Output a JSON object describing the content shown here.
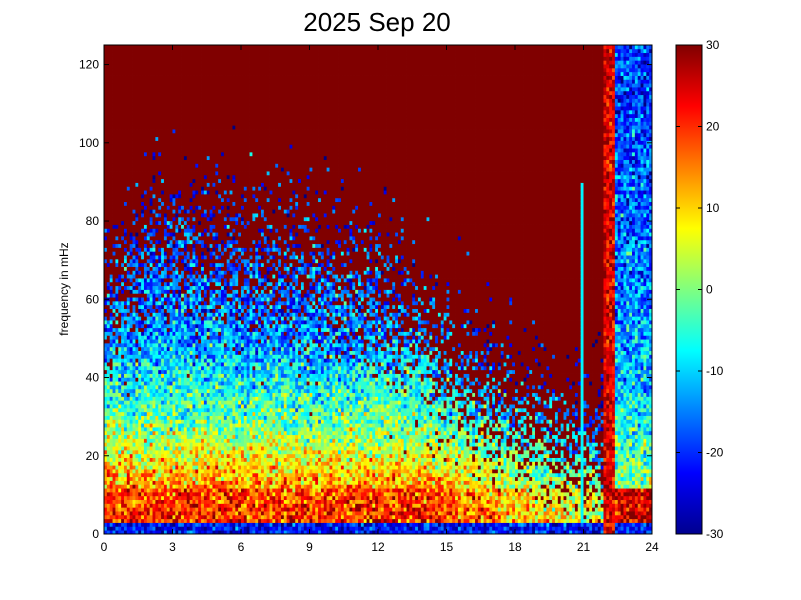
{
  "chart_data": {
    "type": "heatmap",
    "title": "2025 Sep 20",
    "xlabel": "",
    "ylabel": "frequency in mHz",
    "xlim": [
      0,
      24
    ],
    "ylim": [
      0,
      125
    ],
    "xticks": [
      0,
      3,
      6,
      9,
      12,
      15,
      18,
      21,
      24
    ],
    "yticks": [
      0,
      20,
      40,
      60,
      80,
      100,
      120
    ],
    "colorbar": {
      "min": -30,
      "max": 30,
      "ticks": [
        -30,
        -20,
        -10,
        0,
        10,
        20,
        30
      ],
      "colormap": "jet"
    },
    "grid": false,
    "colors": {
      "dark_red": "#800000",
      "red": "#ff0000",
      "yellow": "#ffff00",
      "cyan": "#00ffff",
      "blue": "#0000ff",
      "dark_blue": "#00008f"
    },
    "x_bins_hours": 192,
    "y_bins_mHz": 128
  }
}
